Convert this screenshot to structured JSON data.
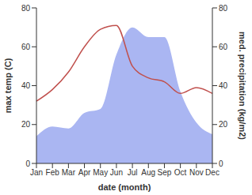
{
  "chart_data": {
    "type": "combo",
    "xlabel": "date (month)",
    "ylabel": "max temp (C)",
    "y2label": "med. precipitation (kg/m2)",
    "categories": [
      "Jan",
      "Feb",
      "Mar",
      "Apr",
      "May",
      "Jun",
      "Jul",
      "Aug",
      "Sep",
      "Oct",
      "Nov",
      "Dec"
    ],
    "series": [
      {
        "type": "area",
        "axis": "y2",
        "color": "#aab6f2",
        "values": [
          14,
          19,
          18,
          26,
          28,
          56,
          70,
          65,
          65,
          37,
          21,
          15
        ]
      },
      {
        "type": "line",
        "color": "#c0504d",
        "values": [
          32,
          38,
          47,
          60,
          69,
          71,
          50,
          44,
          42,
          36,
          39,
          36
        ]
      }
    ],
    "ylim": [
      0,
      80
    ],
    "yticks": [
      0,
      20,
      40,
      60,
      80
    ],
    "y2lim": [
      0,
      80
    ],
    "y2ticks": [
      0,
      20,
      40,
      60,
      80
    ],
    "grid": false
  }
}
